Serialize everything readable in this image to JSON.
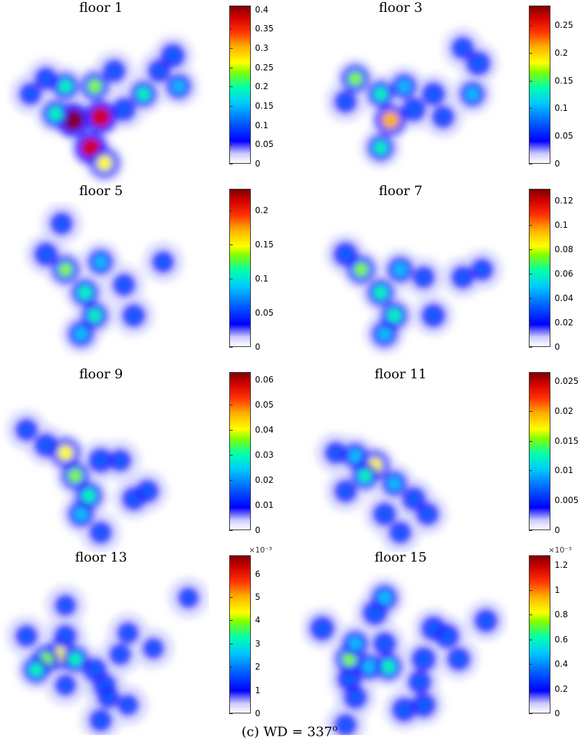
{
  "caption": {
    "prefix": "(c) WD = 337",
    "superscript": "o"
  },
  "chart_data": [
    {
      "type": "heatmap",
      "title": "floor 1",
      "colorbar": {
        "ticks": [
          "0",
          "0.05",
          "0.1",
          "0.15",
          "0.2",
          "0.25",
          "0.3",
          "0.35",
          "0.4"
        ],
        "max": 0.41,
        "multiplier": ""
      },
      "hotspots": [
        {
          "x": 0.34,
          "y": 0.62,
          "v": 0.41
        },
        {
          "x": 0.48,
          "y": 0.6,
          "v": 0.38
        },
        {
          "x": 0.43,
          "y": 0.8,
          "v": 0.36
        },
        {
          "x": 0.5,
          "y": 0.9,
          "v": 0.26
        },
        {
          "x": 0.25,
          "y": 0.58,
          "v": 0.2
        },
        {
          "x": 0.45,
          "y": 0.4,
          "v": 0.22
        },
        {
          "x": 0.3,
          "y": 0.4,
          "v": 0.18
        },
        {
          "x": 0.7,
          "y": 0.45,
          "v": 0.17
        },
        {
          "x": 0.85,
          "y": 0.2,
          "v": 0.12
        },
        {
          "x": 0.88,
          "y": 0.4,
          "v": 0.14
        },
        {
          "x": 0.6,
          "y": 0.55,
          "v": 0.1
        },
        {
          "x": 0.2,
          "y": 0.35,
          "v": 0.08
        },
        {
          "x": 0.12,
          "y": 0.45,
          "v": 0.06
        },
        {
          "x": 0.78,
          "y": 0.3,
          "v": 0.08
        },
        {
          "x": 0.55,
          "y": 0.3,
          "v": 0.08
        }
      ]
    },
    {
      "type": "heatmap",
      "title": "floor 3",
      "colorbar": {
        "ticks": [
          "0",
          "0.05",
          "0.1",
          "0.15",
          "0.2",
          "0.25"
        ],
        "max": 0.285,
        "multiplier": ""
      },
      "hotspots": [
        {
          "x": 0.43,
          "y": 0.62,
          "v": 0.22
        },
        {
          "x": 0.25,
          "y": 0.35,
          "v": 0.15
        },
        {
          "x": 0.38,
          "y": 0.45,
          "v": 0.12
        },
        {
          "x": 0.5,
          "y": 0.4,
          "v": 0.1
        },
        {
          "x": 0.38,
          "y": 0.8,
          "v": 0.12
        },
        {
          "x": 0.88,
          "y": 0.25,
          "v": 0.09
        },
        {
          "x": 0.85,
          "y": 0.45,
          "v": 0.1
        },
        {
          "x": 0.65,
          "y": 0.45,
          "v": 0.07
        },
        {
          "x": 0.55,
          "y": 0.55,
          "v": 0.08
        },
        {
          "x": 0.7,
          "y": 0.6,
          "v": 0.05
        },
        {
          "x": 0.2,
          "y": 0.5,
          "v": 0.05
        },
        {
          "x": 0.8,
          "y": 0.15,
          "v": 0.05
        }
      ]
    },
    {
      "type": "heatmap",
      "title": "floor 5",
      "colorbar": {
        "ticks": [
          "0",
          "0.05",
          "0.1",
          "0.15",
          "0.2"
        ],
        "max": 0.232,
        "multiplier": ""
      },
      "hotspots": [
        {
          "x": 0.3,
          "y": 0.4,
          "v": 0.12
        },
        {
          "x": 0.4,
          "y": 0.55,
          "v": 0.11
        },
        {
          "x": 0.45,
          "y": 0.7,
          "v": 0.1
        },
        {
          "x": 0.38,
          "y": 0.82,
          "v": 0.09
        },
        {
          "x": 0.48,
          "y": 0.35,
          "v": 0.08
        },
        {
          "x": 0.2,
          "y": 0.3,
          "v": 0.06
        },
        {
          "x": 0.65,
          "y": 0.7,
          "v": 0.05
        },
        {
          "x": 0.6,
          "y": 0.5,
          "v": 0.04
        },
        {
          "x": 0.8,
          "y": 0.35,
          "v": 0.03
        },
        {
          "x": 0.28,
          "y": 0.1,
          "v": 0.04
        }
      ]
    },
    {
      "type": "heatmap",
      "title": "floor 7",
      "colorbar": {
        "ticks": [
          "0",
          "0.02",
          "0.04",
          "0.06",
          "0.08",
          "0.1",
          "0.12"
        ],
        "max": 0.13,
        "multiplier": ""
      },
      "hotspots": [
        {
          "x": 0.28,
          "y": 0.4,
          "v": 0.07
        },
        {
          "x": 0.38,
          "y": 0.55,
          "v": 0.06
        },
        {
          "x": 0.45,
          "y": 0.7,
          "v": 0.06
        },
        {
          "x": 0.4,
          "y": 0.82,
          "v": 0.05
        },
        {
          "x": 0.48,
          "y": 0.4,
          "v": 0.05
        },
        {
          "x": 0.2,
          "y": 0.3,
          "v": 0.04
        },
        {
          "x": 0.65,
          "y": 0.7,
          "v": 0.035
        },
        {
          "x": 0.8,
          "y": 0.45,
          "v": 0.025
        },
        {
          "x": 0.6,
          "y": 0.45,
          "v": 0.02
        },
        {
          "x": 0.9,
          "y": 0.4,
          "v": 0.02
        }
      ]
    },
    {
      "type": "heatmap",
      "title": "floor 9",
      "colorbar": {
        "ticks": [
          "0",
          "0.01",
          "0.02",
          "0.03",
          "0.04",
          "0.05",
          "0.06"
        ],
        "max": 0.063,
        "multiplier": ""
      },
      "hotspots": [
        {
          "x": 0.3,
          "y": 0.4,
          "v": 0.04
        },
        {
          "x": 0.35,
          "y": 0.55,
          "v": 0.033
        },
        {
          "x": 0.42,
          "y": 0.68,
          "v": 0.03
        },
        {
          "x": 0.38,
          "y": 0.8,
          "v": 0.025
        },
        {
          "x": 0.48,
          "y": 0.45,
          "v": 0.02
        },
        {
          "x": 0.2,
          "y": 0.35,
          "v": 0.015
        },
        {
          "x": 0.65,
          "y": 0.7,
          "v": 0.015
        },
        {
          "x": 0.72,
          "y": 0.65,
          "v": 0.012
        },
        {
          "x": 0.48,
          "y": 0.92,
          "v": 0.01
        },
        {
          "x": 0.1,
          "y": 0.25,
          "v": 0.01
        },
        {
          "x": 0.58,
          "y": 0.45,
          "v": 0.01
        }
      ]
    },
    {
      "type": "heatmap",
      "title": "floor 11",
      "colorbar": {
        "ticks": [
          "0",
          "0.005",
          "0.01",
          "0.015",
          "0.02",
          "0.025"
        ],
        "max": 0.0265,
        "multiplier": ""
      },
      "hotspots": [
        {
          "x": 0.35,
          "y": 0.48,
          "v": 0.016
        },
        {
          "x": 0.3,
          "y": 0.55,
          "v": 0.012
        },
        {
          "x": 0.25,
          "y": 0.42,
          "v": 0.01
        },
        {
          "x": 0.45,
          "y": 0.6,
          "v": 0.009
        },
        {
          "x": 0.55,
          "y": 0.7,
          "v": 0.007
        },
        {
          "x": 0.4,
          "y": 0.8,
          "v": 0.006
        },
        {
          "x": 0.62,
          "y": 0.8,
          "v": 0.005
        },
        {
          "x": 0.2,
          "y": 0.65,
          "v": 0.005
        },
        {
          "x": 0.48,
          "y": 0.92,
          "v": 0.004
        },
        {
          "x": 0.15,
          "y": 0.4,
          "v": 0.004
        }
      ]
    },
    {
      "type": "heatmap",
      "title": "floor 13",
      "colorbar": {
        "ticks": [
          "0",
          "1",
          "2",
          "3",
          "4",
          "5",
          "6"
        ],
        "max": 6.8,
        "multiplier": "×10⁻³"
      },
      "hotspots": [
        {
          "x": 0.27,
          "y": 0.52,
          "v": 4.5
        },
        {
          "x": 0.2,
          "y": 0.55,
          "v": 3.5
        },
        {
          "x": 0.15,
          "y": 0.62,
          "v": 3.0
        },
        {
          "x": 0.35,
          "y": 0.55,
          "v": 3.0
        },
        {
          "x": 0.45,
          "y": 0.62,
          "v": 1.8
        },
        {
          "x": 0.5,
          "y": 0.72,
          "v": 1.5
        },
        {
          "x": 0.3,
          "y": 0.4,
          "v": 1.2
        },
        {
          "x": 0.1,
          "y": 0.4,
          "v": 1.0
        },
        {
          "x": 0.52,
          "y": 0.8,
          "v": 1.0
        },
        {
          "x": 0.48,
          "y": 0.95,
          "v": 1.2
        },
        {
          "x": 0.58,
          "y": 0.52,
          "v": 0.8
        },
        {
          "x": 0.62,
          "y": 0.38,
          "v": 0.7
        },
        {
          "x": 0.3,
          "y": 0.2,
          "v": 0.6
        },
        {
          "x": 0.75,
          "y": 0.48,
          "v": 0.5
        },
        {
          "x": 0.62,
          "y": 0.85,
          "v": 0.5
        },
        {
          "x": 0.93,
          "y": 0.15,
          "v": 0.4
        },
        {
          "x": 0.3,
          "y": 0.72,
          "v": 0.6
        }
      ]
    },
    {
      "type": "heatmap",
      "title": "floor 15",
      "colorbar": {
        "ticks": [
          "0",
          "0.2",
          "0.4",
          "0.6",
          "0.8",
          "1",
          "1.2"
        ],
        "max": 1.28,
        "multiplier": "×10⁻³"
      },
      "hotspots": [
        {
          "x": 0.22,
          "y": 0.55,
          "v": 0.7
        },
        {
          "x": 0.25,
          "y": 0.45,
          "v": 0.5
        },
        {
          "x": 0.42,
          "y": 0.6,
          "v": 0.6
        },
        {
          "x": 0.32,
          "y": 0.6,
          "v": 0.5
        },
        {
          "x": 0.22,
          "y": 0.68,
          "v": 0.4
        },
        {
          "x": 0.25,
          "y": 0.8,
          "v": 0.3
        },
        {
          "x": 0.4,
          "y": 0.15,
          "v": 0.5
        },
        {
          "x": 0.35,
          "y": 0.25,
          "v": 0.4
        },
        {
          "x": 0.08,
          "y": 0.35,
          "v": 0.4
        },
        {
          "x": 0.6,
          "y": 0.55,
          "v": 0.4
        },
        {
          "x": 0.65,
          "y": 0.35,
          "v": 0.4
        },
        {
          "x": 0.72,
          "y": 0.4,
          "v": 0.4
        },
        {
          "x": 0.78,
          "y": 0.55,
          "v": 0.3
        },
        {
          "x": 0.4,
          "y": 0.45,
          "v": 0.3
        },
        {
          "x": 0.58,
          "y": 0.7,
          "v": 0.3
        },
        {
          "x": 0.5,
          "y": 0.88,
          "v": 0.4
        },
        {
          "x": 0.6,
          "y": 0.85,
          "v": 0.4
        },
        {
          "x": 0.92,
          "y": 0.3,
          "v": 0.3
        },
        {
          "x": 0.2,
          "y": 0.98,
          "v": 0.2
        }
      ]
    }
  ]
}
